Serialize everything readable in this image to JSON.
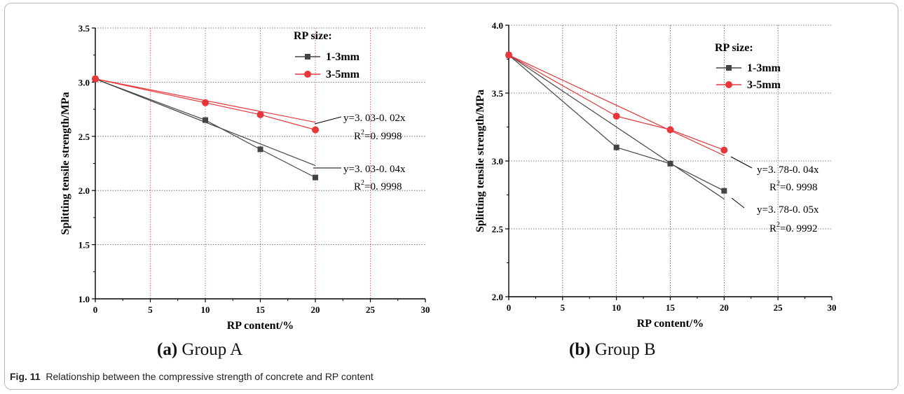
{
  "caption": {
    "label": "Fig. 11",
    "text": "Relationship between the compressive strength of concrete and RP content"
  },
  "chart_data": [
    {
      "type": "line",
      "panel_label": "(a)",
      "panel_title": "Group A",
      "xlabel": "RP content/%",
      "ylabel": "Splitting tensile strength/MPa",
      "xlim": [
        0,
        30
      ],
      "ylim": [
        1.0,
        3.5
      ],
      "xticks": [
        0,
        5,
        10,
        15,
        20,
        25,
        30
      ],
      "xtick_labels": [
        "0",
        "5",
        "10",
        "15",
        "20",
        "25",
        "30"
      ],
      "yticks": [
        1.0,
        1.5,
        2.0,
        2.5,
        3.0,
        3.5
      ],
      "ytick_labels": [
        "1.0",
        "1.5",
        "2.0",
        "2.5",
        "3.0",
        "3.5"
      ],
      "grid": true,
      "legend_title": "RP size:",
      "legend_position": "top-right",
      "series": [
        {
          "name": "1-3mm",
          "color": "#444444",
          "marker": "square",
          "x": [
            0,
            10,
            15,
            20
          ],
          "y": [
            3.03,
            2.65,
            2.38,
            2.12
          ]
        },
        {
          "name": "3-5mm",
          "color": "#e8363a",
          "marker": "circle",
          "x": [
            0,
            10,
            15,
            20
          ],
          "y": [
            3.03,
            2.81,
            2.7,
            2.56
          ]
        }
      ],
      "fits": [
        {
          "series": "3-5mm",
          "intercept": 3.03,
          "slope": -0.02,
          "x_end": 20,
          "eq": "y=3. 03-0. 02x",
          "r2_prefix": "R",
          "r2_sup": "2",
          "r2_value": "=0. 9998"
        },
        {
          "series": "1-3mm",
          "intercept": 3.03,
          "slope": -0.04,
          "x_end": 20,
          "eq": "y=3. 03-0. 04x",
          "r2_prefix": "R",
          "r2_sup": "2",
          "r2_value": "=0. 9998"
        }
      ]
    },
    {
      "type": "line",
      "panel_label": "(b)",
      "panel_title": "Group B",
      "xlabel": "RP content/%",
      "ylabel": "Splitting tensile strength/MPa",
      "xlim": [
        0,
        30
      ],
      "ylim": [
        2.0,
        4.0
      ],
      "xticks": [
        0,
        5,
        10,
        15,
        20,
        25,
        30
      ],
      "xtick_labels": [
        "0",
        "5",
        "10",
        "15",
        "20",
        "25",
        "30"
      ],
      "yticks": [
        2.0,
        2.5,
        3.0,
        3.5,
        4.0
      ],
      "ytick_labels": [
        "2.0",
        "2.5",
        "3.0",
        "3.5",
        "4.0"
      ],
      "grid": true,
      "legend_title": "RP size:",
      "legend_position": "top-right",
      "series": [
        {
          "name": "1-3mm",
          "color": "#444444",
          "marker": "square",
          "x": [
            0,
            10,
            15,
            20
          ],
          "y": [
            3.78,
            3.1,
            2.98,
            2.78
          ]
        },
        {
          "name": "3-5mm",
          "color": "#e8363a",
          "marker": "circle",
          "x": [
            0,
            10,
            15,
            20
          ],
          "y": [
            3.78,
            3.33,
            3.23,
            3.08
          ]
        }
      ],
      "fits": [
        {
          "series": "3-5mm",
          "intercept": 3.78,
          "slope": -0.037,
          "x_end": 20,
          "eq": "y=3. 78-0. 04x",
          "r2_prefix": "R",
          "r2_sup": "2",
          "r2_value": "=0. 9998"
        },
        {
          "series": "1-3mm",
          "intercept": 3.78,
          "slope": -0.053,
          "x_end": 20,
          "eq": "y=3. 78-0. 05x",
          "r2_prefix": "R",
          "r2_sup": "2",
          "r2_value": "=0. 9992"
        }
      ]
    }
  ]
}
